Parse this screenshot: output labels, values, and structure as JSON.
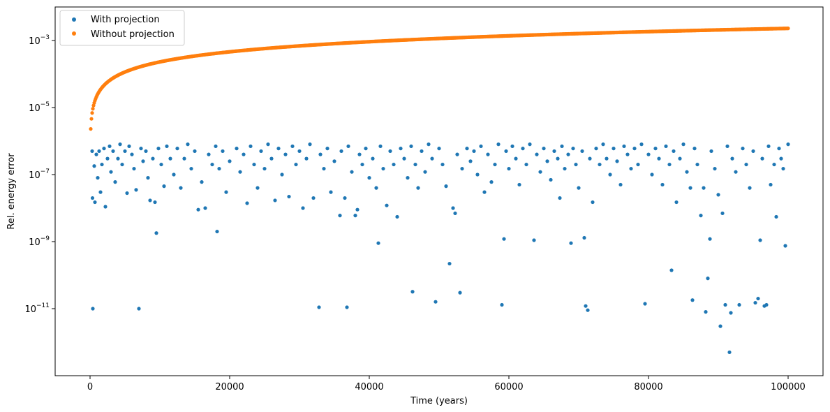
{
  "chart_data": {
    "type": "scatter",
    "title": "",
    "xlabel": "Time (years)",
    "ylabel": "Rel. energy error",
    "xlim": [
      -5000,
      105000
    ],
    "ylim": [
      1e-13,
      0.01
    ],
    "yscale": "log",
    "x_ticks": [
      0,
      20000,
      40000,
      60000,
      80000,
      100000
    ],
    "x_tick_labels": [
      "0",
      "20000",
      "40000",
      "60000",
      "80000",
      "100000"
    ],
    "y_ticks": [
      1e-11,
      1e-09,
      1e-07,
      1e-05,
      0.001
    ],
    "y_tick_labels": [
      {
        "base": "10",
        "exp": "−11"
      },
      {
        "base": "10",
        "exp": "−9"
      },
      {
        "base": "10",
        "exp": "−7"
      },
      {
        "base": "10",
        "exp": "−5"
      },
      {
        "base": "10",
        "exp": "−3"
      }
    ],
    "grid": false,
    "legend_position": "top-left",
    "series": [
      {
        "name": "With projection",
        "color": "#1f77b4",
        "points": [
          [
            300,
            5e-07
          ],
          [
            350,
            2e-08
          ],
          [
            400,
            1e-11
          ],
          [
            600,
            1.8e-07
          ],
          [
            700,
            1.5e-08
          ],
          [
            900,
            4e-07
          ],
          [
            1100,
            8e-08
          ],
          [
            1300,
            5e-07
          ],
          [
            1500,
            3e-08
          ],
          [
            1700,
            2e-07
          ],
          [
            2000,
            6e-07
          ],
          [
            2200,
            1.1e-08
          ],
          [
            2500,
            3e-07
          ],
          [
            2800,
            7e-07
          ],
          [
            3000,
            1.2e-07
          ],
          [
            3300,
            5e-07
          ],
          [
            3600,
            6e-08
          ],
          [
            4000,
            3e-07
          ],
          [
            4300,
            8e-07
          ],
          [
            4600,
            2e-07
          ],
          [
            5000,
            5e-07
          ],
          [
            5300,
            2.8e-08
          ],
          [
            5600,
            7e-07
          ],
          [
            6000,
            4e-07
          ],
          [
            6300,
            1.5e-07
          ],
          [
            6600,
            3.5e-08
          ],
          [
            7000,
            1e-11
          ],
          [
            7300,
            6e-07
          ],
          [
            7600,
            2.5e-07
          ],
          [
            8000,
            5e-07
          ],
          [
            8300,
            8e-08
          ],
          [
            8600,
            1.7e-08
          ],
          [
            9000,
            3e-07
          ],
          [
            9300,
            1.5e-08
          ],
          [
            9500,
            1.8e-09
          ],
          [
            9800,
            6e-07
          ],
          [
            10200,
            2e-07
          ],
          [
            10600,
            4.5e-08
          ],
          [
            11000,
            7e-07
          ],
          [
            11500,
            3e-07
          ],
          [
            12000,
            1e-07
          ],
          [
            12500,
            6e-07
          ],
          [
            13000,
            4e-08
          ],
          [
            13500,
            3e-07
          ],
          [
            14000,
            8e-07
          ],
          [
            14500,
            1.5e-07
          ],
          [
            15000,
            5e-07
          ],
          [
            15500,
            9e-09
          ],
          [
            16000,
            6e-08
          ],
          [
            16500,
            1e-08
          ],
          [
            17000,
            4e-07
          ],
          [
            17500,
            2e-07
          ],
          [
            18000,
            7e-07
          ],
          [
            18200,
            2e-09
          ],
          [
            18500,
            1.5e-07
          ],
          [
            19000,
            5e-07
          ],
          [
            19500,
            3e-08
          ],
          [
            20000,
            2.5e-07
          ],
          [
            21000,
            6e-07
          ],
          [
            21500,
            1.2e-07
          ],
          [
            22000,
            4e-07
          ],
          [
            22500,
            1.4e-08
          ],
          [
            23000,
            7e-07
          ],
          [
            23500,
            2e-07
          ],
          [
            24000,
            4e-08
          ],
          [
            24500,
            5e-07
          ],
          [
            25000,
            1.5e-07
          ],
          [
            25500,
            8e-07
          ],
          [
            26000,
            3e-07
          ],
          [
            26500,
            1.7e-08
          ],
          [
            27000,
            6e-07
          ],
          [
            27500,
            1e-07
          ],
          [
            28000,
            4e-07
          ],
          [
            28500,
            2.2e-08
          ],
          [
            29000,
            7e-07
          ],
          [
            29500,
            2e-07
          ],
          [
            30000,
            5e-07
          ],
          [
            30500,
            1e-08
          ],
          [
            31000,
            3e-07
          ],
          [
            31500,
            8e-07
          ],
          [
            32000,
            2e-08
          ],
          [
            32800,
            1.1e-11
          ],
          [
            33000,
            4e-07
          ],
          [
            33500,
            1.5e-07
          ],
          [
            34000,
            6e-07
          ],
          [
            34500,
            3e-08
          ],
          [
            35000,
            2.5e-07
          ],
          [
            35800,
            6e-09
          ],
          [
            36000,
            5e-07
          ],
          [
            36500,
            2e-08
          ],
          [
            36800,
            1.1e-11
          ],
          [
            37000,
            7e-07
          ],
          [
            37500,
            1.2e-07
          ],
          [
            38000,
            6e-09
          ],
          [
            38300,
            9e-09
          ],
          [
            38600,
            4e-07
          ],
          [
            39000,
            2e-07
          ],
          [
            39500,
            6e-07
          ],
          [
            40000,
            8e-08
          ],
          [
            40500,
            3e-07
          ],
          [
            41000,
            4e-08
          ],
          [
            41300,
            9e-10
          ],
          [
            41600,
            7e-07
          ],
          [
            42000,
            1.5e-07
          ],
          [
            42500,
            1.2e-08
          ],
          [
            43000,
            5e-07
          ],
          [
            43500,
            2e-07
          ],
          [
            44000,
            5.5e-09
          ],
          [
            44500,
            6e-07
          ],
          [
            45000,
            3e-07
          ],
          [
            45500,
            8e-08
          ],
          [
            46000,
            7e-07
          ],
          [
            46200,
            3.2e-11
          ],
          [
            46600,
            2e-07
          ],
          [
            47000,
            4e-08
          ],
          [
            47500,
            5e-07
          ],
          [
            48000,
            1.2e-07
          ],
          [
            48500,
            8e-07
          ],
          [
            49000,
            3e-07
          ],
          [
            49500,
            1.6e-11
          ],
          [
            50000,
            6e-07
          ],
          [
            50500,
            2e-07
          ],
          [
            51000,
            4.5e-08
          ],
          [
            51500,
            2.2e-10
          ],
          [
            52000,
            1e-08
          ],
          [
            52300,
            7e-09
          ],
          [
            52600,
            4e-07
          ],
          [
            53000,
            3e-11
          ],
          [
            53300,
            1.5e-07
          ],
          [
            54000,
            6e-07
          ],
          [
            54500,
            2.5e-07
          ],
          [
            55000,
            5e-07
          ],
          [
            55500,
            1e-07
          ],
          [
            56000,
            7e-07
          ],
          [
            56500,
            3e-08
          ],
          [
            57000,
            4e-07
          ],
          [
            57500,
            6e-08
          ],
          [
            58000,
            2e-07
          ],
          [
            58500,
            8e-07
          ],
          [
            59000,
            1.3e-11
          ],
          [
            59300,
            1.2e-09
          ],
          [
            59600,
            5e-07
          ],
          [
            60000,
            1.5e-07
          ],
          [
            60500,
            7e-07
          ],
          [
            61000,
            3e-07
          ],
          [
            61500,
            5e-08
          ],
          [
            62000,
            6e-07
          ],
          [
            62500,
            2e-07
          ],
          [
            63000,
            8e-07
          ],
          [
            63600,
            1.1e-09
          ],
          [
            64000,
            4e-07
          ],
          [
            64500,
            1.2e-07
          ],
          [
            65000,
            6e-07
          ],
          [
            65500,
            2.5e-07
          ],
          [
            66000,
            7e-08
          ],
          [
            66500,
            5e-07
          ],
          [
            67000,
            3e-07
          ],
          [
            67300,
            2e-08
          ],
          [
            67600,
            7e-07
          ],
          [
            68000,
            1.5e-07
          ],
          [
            68500,
            4e-07
          ],
          [
            68900,
            9e-10
          ],
          [
            69200,
            6e-07
          ],
          [
            69600,
            2e-07
          ],
          [
            70000,
            4e-08
          ],
          [
            70500,
            5e-07
          ],
          [
            70800,
            1.3e-09
          ],
          [
            71000,
            1.2e-11
          ],
          [
            71300,
            9e-12
          ],
          [
            71600,
            3e-07
          ],
          [
            72000,
            1.5e-08
          ],
          [
            72500,
            6e-07
          ],
          [
            73000,
            2e-07
          ],
          [
            73500,
            8e-07
          ],
          [
            74000,
            3e-07
          ],
          [
            74500,
            1e-07
          ],
          [
            75000,
            6e-07
          ],
          [
            75500,
            2.5e-07
          ],
          [
            76000,
            5e-08
          ],
          [
            76500,
            7e-07
          ],
          [
            77000,
            4e-07
          ],
          [
            77500,
            1.5e-07
          ],
          [
            78000,
            6e-07
          ],
          [
            78500,
            2e-07
          ],
          [
            79000,
            8e-07
          ],
          [
            79500,
            1.4e-11
          ],
          [
            80000,
            4e-07
          ],
          [
            80500,
            1e-07
          ],
          [
            81000,
            6e-07
          ],
          [
            81500,
            3e-07
          ],
          [
            82000,
            5e-08
          ],
          [
            82500,
            7e-07
          ],
          [
            83000,
            2e-07
          ],
          [
            83300,
            1.4e-10
          ],
          [
            83600,
            5e-07
          ],
          [
            84000,
            1.5e-08
          ],
          [
            84500,
            3e-07
          ],
          [
            85000,
            8e-07
          ],
          [
            85500,
            1.2e-07
          ],
          [
            86000,
            4e-08
          ],
          [
            86300,
            1.8e-11
          ],
          [
            86600,
            6e-07
          ],
          [
            87000,
            2e-07
          ],
          [
            87500,
            6e-09
          ],
          [
            87900,
            4e-08
          ],
          [
            88200,
            8e-12
          ],
          [
            88500,
            8e-11
          ],
          [
            88800,
            1.2e-09
          ],
          [
            89000,
            5e-07
          ],
          [
            89500,
            1.5e-07
          ],
          [
            90000,
            2.5e-08
          ],
          [
            90300,
            3e-12
          ],
          [
            90600,
            7e-09
          ],
          [
            91000,
            1.3e-11
          ],
          [
            91300,
            7e-07
          ],
          [
            91600,
            5e-13
          ],
          [
            91800,
            7.5e-12
          ],
          [
            92000,
            3e-07
          ],
          [
            92500,
            1.2e-07
          ],
          [
            93000,
            1.3e-11
          ],
          [
            93500,
            6e-07
          ],
          [
            94000,
            2e-07
          ],
          [
            94500,
            4e-08
          ],
          [
            95000,
            5e-07
          ],
          [
            95300,
            1.5e-11
          ],
          [
            95700,
            2e-11
          ],
          [
            96000,
            1.1e-09
          ],
          [
            96300,
            3e-07
          ],
          [
            96600,
            1.2e-11
          ],
          [
            96900,
            1.3e-11
          ],
          [
            97200,
            7e-07
          ],
          [
            97500,
            5e-08
          ],
          [
            98000,
            2e-07
          ],
          [
            98300,
            5.5e-09
          ],
          [
            98700,
            6e-07
          ],
          [
            99000,
            3e-07
          ],
          [
            99300,
            1.5e-07
          ],
          [
            99600,
            7.5e-10
          ],
          [
            100000,
            8e-07
          ]
        ]
      },
      {
        "name": "Without projection",
        "color": "#ff7f0e",
        "scaling": {
          "coef": 2.3e-08,
          "power": 1.0
        }
      }
    ]
  }
}
